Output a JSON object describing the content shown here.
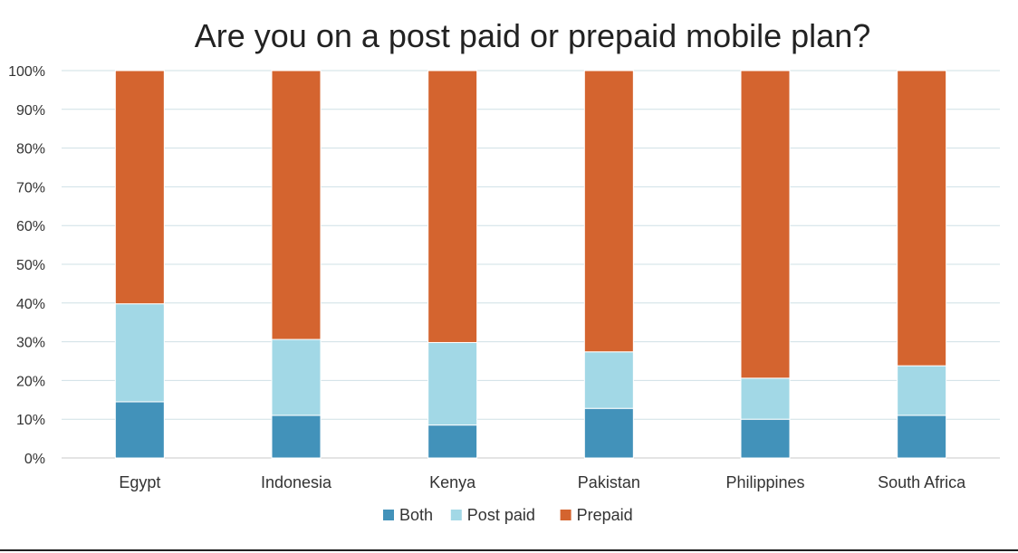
{
  "chart_data": {
    "type": "bar",
    "stacked": true,
    "title": "Are you on a post paid or prepaid mobile plan?",
    "categories": [
      "Egypt",
      "Indonesia",
      "Kenya",
      "Pakistan",
      "Philippines",
      "South Africa"
    ],
    "series": [
      {
        "name": "Both",
        "color": "#4292ba",
        "values": [
          14.5,
          11,
          8.5,
          12.8,
          10,
          11
        ]
      },
      {
        "name": "Post paid",
        "color": "#a2d8e6",
        "values": [
          25.3,
          19.6,
          21.3,
          14.6,
          10.6,
          12.8
        ]
      },
      {
        "name": "Prepaid",
        "color": "#d4642f",
        "values": [
          60.2,
          69.4,
          70.2,
          72.6,
          79.4,
          76.2
        ]
      }
    ],
    "ylim": [
      0,
      100
    ],
    "yticks": [
      "0%",
      "10%",
      "20%",
      "30%",
      "40%",
      "50%",
      "60%",
      "70%",
      "80%",
      "90%",
      "100%"
    ],
    "grid": true,
    "legend_position": "bottom"
  }
}
